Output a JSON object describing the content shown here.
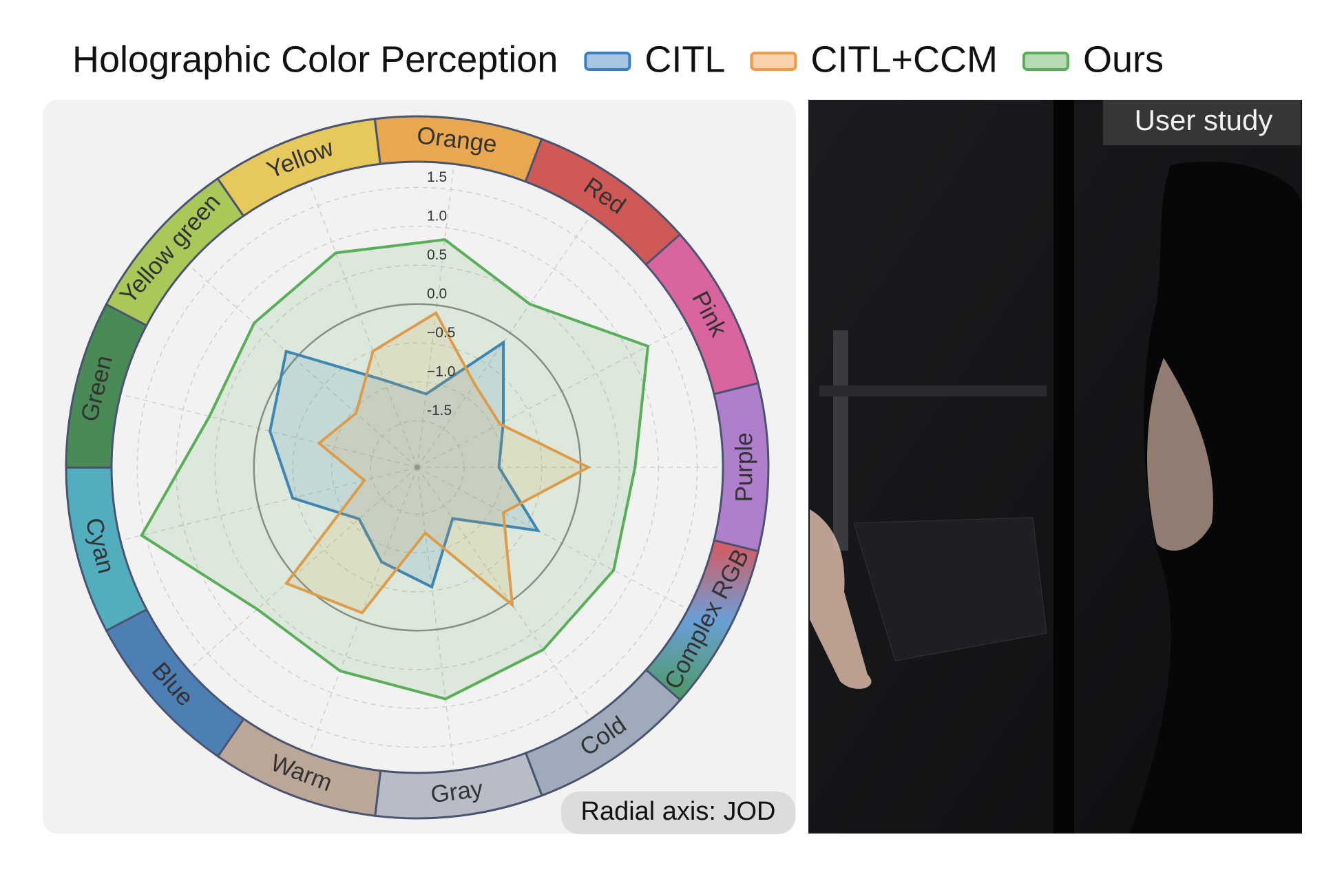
{
  "chart_data": {
    "type": "radar",
    "title": "Holographic Color Perception",
    "categories": [
      "Orange",
      "Red",
      "Pink",
      "Purple",
      "Complex RGB",
      "Cold",
      "Gray",
      "Warm",
      "Blue",
      "Cyan",
      "Green",
      "Yellow green",
      "Yellow"
    ],
    "category_colors": [
      "#e9a84f",
      "#cf5a55",
      "#d9659f",
      "#b07fcc",
      "gradient",
      "#9fabbb",
      "#b8bcc6",
      "#bba797",
      "#4d7fb5",
      "#52aebf",
      "#4a8a57",
      "#a8c85a",
      "#e7c85a"
    ],
    "series": [
      {
        "name": "CITL",
        "color": "#3a7fc1",
        "values": [
          -1.15,
          -0.15,
          -0.85,
          -1.05,
          -0.35,
          -1.3,
          -0.55,
          -0.8,
          -1.1,
          -0.45,
          -0.15,
          0.15,
          -0.9
        ]
      },
      {
        "name": "CITL+CCM",
        "color": "#f39a4a",
        "values": [
          -0.1,
          -0.8,
          -0.9,
          0.1,
          -0.85,
          0.05,
          -1.25,
          -0.1,
          0.15,
          -1.4,
          -0.8,
          -1.05,
          -0.5
        ]
      },
      {
        "name": "Ours",
        "color": "#5aae5a",
        "values": [
          0.85,
          0.45,
          1.25,
          0.7,
          0.75,
          0.75,
          0.9,
          0.7,
          0.65,
          1.55,
          0.65,
          0.7,
          0.85
        ]
      }
    ],
    "rlim": [
      -2.1,
      1.83
    ],
    "rticks": [
      -1.5,
      {
        "value": -1.0,
        "label": "−1.0"
      },
      {
        "value": -0.5,
        "label": "−0.5"
      },
      {
        "value": 0.0,
        "label": "0.0"
      },
      0.5,
      {
        "value": 1.0,
        "label": "1.0"
      },
      1.5
    ],
    "reference_circle": 0,
    "grid": true,
    "annotation": "Radial axis: JOD"
  },
  "photo": {
    "label": "User study"
  }
}
